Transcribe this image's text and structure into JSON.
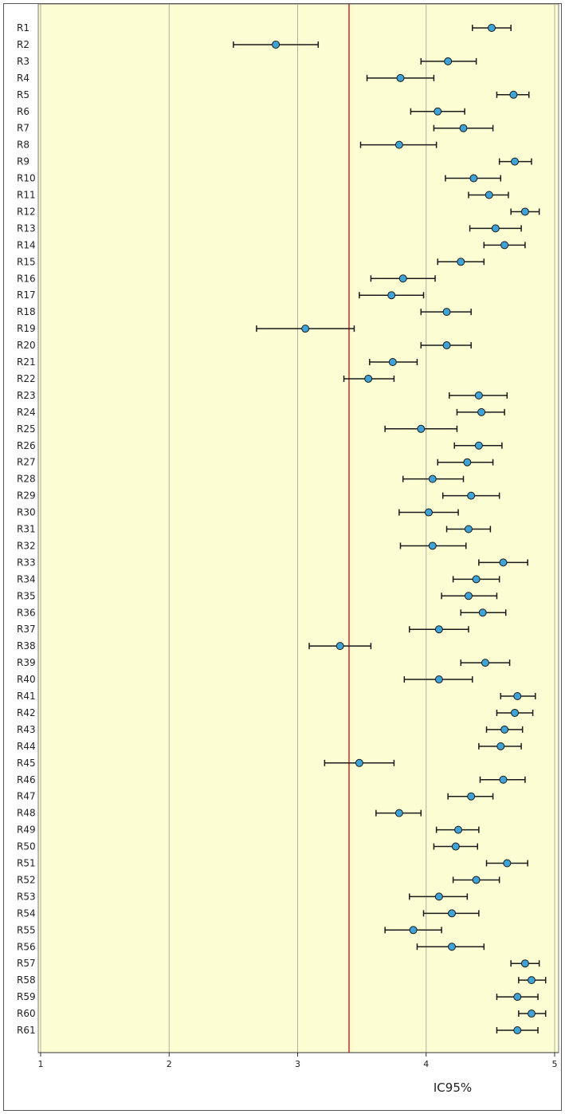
{
  "chart_data": {
    "type": "forest",
    "title": "",
    "xlabel": "IC95%",
    "ylabel": "",
    "xlim": [
      1,
      5
    ],
    "x_ticks": [
      1,
      2,
      3,
      4,
      5
    ],
    "reference_line": 3.4,
    "colors": {
      "plot_background": "#fdfdd4",
      "reference_line": "#d62728",
      "marker_fill": "#3fa3d8",
      "marker_edge": "#1a1a1a",
      "whisker": "#1a1a1a",
      "gridline": "#b0b0a0"
    },
    "categories": [
      "R1",
      "R2",
      "R3",
      "R4",
      "R5",
      "R6",
      "R7",
      "R8",
      "R9",
      "R10",
      "R11",
      "R12",
      "R13",
      "R14",
      "R15",
      "R16",
      "R17",
      "R18",
      "R19",
      "R20",
      "R21",
      "R22",
      "R23",
      "R24",
      "R25",
      "R26",
      "R27",
      "R28",
      "R29",
      "R30",
      "R31",
      "R32",
      "R33",
      "R34",
      "R35",
      "R36",
      "R37",
      "R38",
      "R39",
      "R40",
      "R41",
      "R42",
      "R43",
      "R44",
      "R45",
      "R46",
      "R47",
      "R48",
      "R49",
      "R50",
      "R51",
      "R52",
      "R53",
      "R54",
      "R55",
      "R56",
      "R57",
      "R58",
      "R59",
      "R60",
      "R61"
    ],
    "mean": [
      4.51,
      2.83,
      4.17,
      3.8,
      4.68,
      4.09,
      4.29,
      3.79,
      4.69,
      4.37,
      4.49,
      4.77,
      4.54,
      4.61,
      4.27,
      3.82,
      3.73,
      4.16,
      3.06,
      4.16,
      3.74,
      3.55,
      4.41,
      4.43,
      3.96,
      4.41,
      4.32,
      4.05,
      4.35,
      4.02,
      4.33,
      4.05,
      4.6,
      4.39,
      4.33,
      4.44,
      4.1,
      3.33,
      4.46,
      4.1,
      4.71,
      4.69,
      4.61,
      4.58,
      3.48,
      4.6,
      4.35,
      3.79,
      4.25,
      4.23,
      4.63,
      4.39,
      4.1,
      4.2,
      3.9,
      4.2,
      4.77,
      4.82,
      4.71,
      4.82,
      4.71
    ],
    "lower": [
      4.36,
      2.5,
      3.96,
      3.54,
      4.55,
      3.88,
      4.06,
      3.49,
      4.57,
      4.15,
      4.33,
      4.66,
      4.34,
      4.45,
      4.09,
      3.57,
      3.48,
      3.96,
      2.68,
      3.96,
      3.56,
      3.36,
      4.18,
      4.24,
      3.68,
      4.22,
      4.09,
      3.82,
      4.13,
      3.79,
      4.16,
      3.8,
      4.41,
      4.21,
      4.12,
      4.27,
      3.87,
      3.09,
      4.27,
      3.83,
      4.58,
      4.55,
      4.47,
      4.41,
      3.21,
      4.42,
      4.17,
      3.61,
      4.08,
      4.06,
      4.47,
      4.21,
      3.87,
      3.98,
      3.68,
      3.93,
      4.66,
      4.72,
      4.55,
      4.72,
      4.55
    ],
    "upper": [
      4.66,
      3.16,
      4.39,
      4.06,
      4.8,
      4.3,
      4.52,
      4.08,
      4.82,
      4.58,
      4.64,
      4.88,
      4.74,
      4.77,
      4.45,
      4.07,
      3.98,
      4.35,
      3.44,
      4.35,
      3.93,
      3.75,
      4.63,
      4.61,
      4.24,
      4.59,
      4.52,
      4.29,
      4.57,
      4.25,
      4.5,
      4.31,
      4.79,
      4.57,
      4.55,
      4.62,
      4.33,
      3.57,
      4.65,
      4.36,
      4.85,
      4.83,
      4.75,
      4.74,
      3.75,
      4.77,
      4.52,
      3.96,
      4.41,
      4.4,
      4.79,
      4.57,
      4.32,
      4.41,
      4.12,
      4.45,
      4.88,
      4.93,
      4.87,
      4.93,
      4.87
    ]
  }
}
